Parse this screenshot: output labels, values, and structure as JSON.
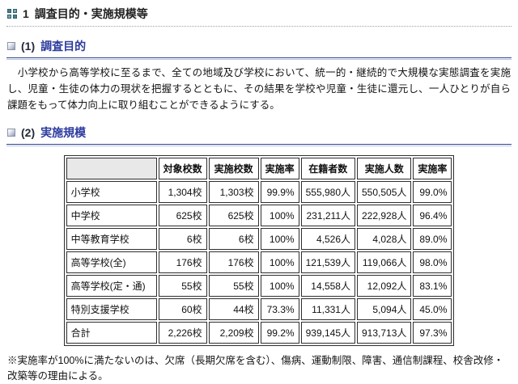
{
  "page": {
    "section_number": "1",
    "section_title": "調査目的・実施規模等"
  },
  "purpose": {
    "heading_number": "(1)",
    "heading": "調査目的",
    "body": "　小学校から高等学校に至るまで、全ての地域及び学校において、統一的・継続的で大規模な実態調査を実施し、児童・生徒の体力の現状を把握するとともに、その結果を学校や児童・生徒に還元し、一人ひとりが自ら課題をもって体力向上に取り組むことができるようにする。"
  },
  "scale": {
    "heading_number": "(2)",
    "heading": "実施規模",
    "table": {
      "headers": [
        "",
        "対象校数",
        "実施校数",
        "実施率",
        "在籍者数",
        "実施人数",
        "実施率"
      ],
      "rows": [
        [
          "小学校",
          "1,304校",
          "1,303校",
          "99.9%",
          "555,980人",
          "550,505人",
          "99.0%"
        ],
        [
          "中学校",
          "625校",
          "625校",
          "100%",
          "231,211人",
          "222,928人",
          "96.4%"
        ],
        [
          "中等教育学校",
          "6校",
          "6校",
          "100%",
          "4,526人",
          "4,028人",
          "89.0%"
        ],
        [
          "高等学校(全)",
          "176校",
          "176校",
          "100%",
          "121,539人",
          "119,066人",
          "98.0%"
        ],
        [
          "高等学校(定・通)",
          "55校",
          "55校",
          "100%",
          "14,558人",
          "12,092人",
          "83.1%"
        ],
        [
          "特別支援学校",
          "60校",
          "44校",
          "73.3%",
          "11,331人",
          "5,094人",
          "45.0%"
        ],
        [
          "合計",
          "2,226校",
          "2,209校",
          "99.2%",
          "939,145人",
          "913,713人",
          "97.3%"
        ]
      ]
    },
    "note": "※実施率が100%に満たないのは、欠席（長期欠席を含む）、傷病、運動制限、障害、通信制課程、校舎改修・改築等の理由による。"
  },
  "colors": {
    "heading_blue": "#2b3a9e",
    "rule_blue": "#2c4590",
    "icon_teal": "#49808e",
    "table_header_gray": "#e8e8e8",
    "dotted_divider_gray": "#9aa0a8"
  }
}
